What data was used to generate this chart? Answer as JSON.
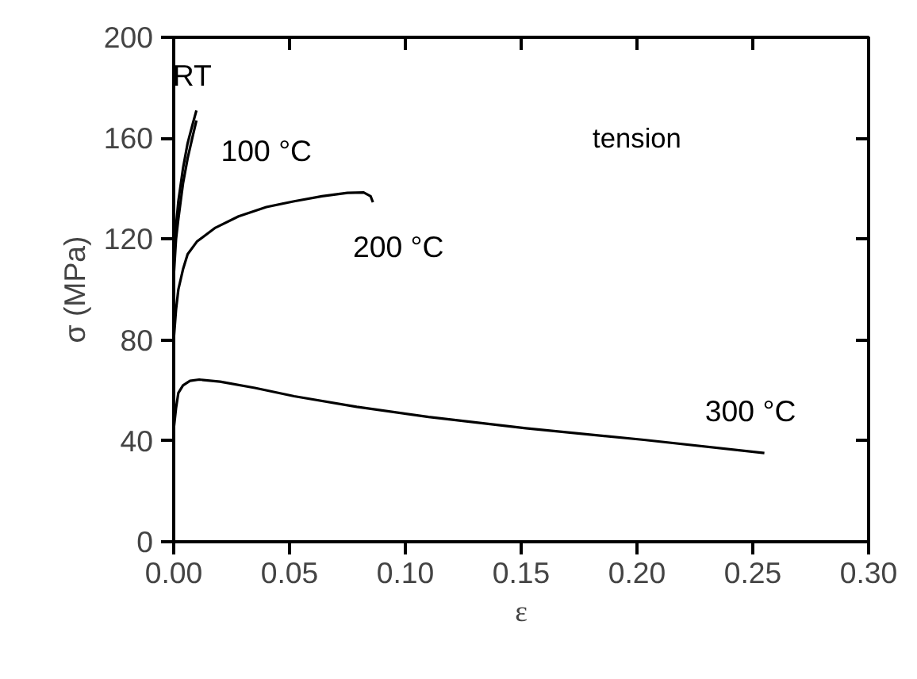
{
  "chart_data": {
    "type": "line",
    "xlabel": "ε",
    "ylabel": "σ (MPa)",
    "annotations": [
      "tension",
      "RT",
      "100 °C",
      "200 °C",
      "300 °C"
    ],
    "xlim": [
      0,
      0.3
    ],
    "ylim": [
      0,
      200
    ],
    "xticks": [
      {
        "value": 0,
        "label": "0.00"
      },
      {
        "value": 0.05,
        "label": "0.05"
      },
      {
        "value": 0.1,
        "label": "0.10"
      },
      {
        "value": 0.15,
        "label": "0.15"
      },
      {
        "value": 0.2,
        "label": "0.20"
      },
      {
        "value": 0.25,
        "label": "0.25"
      },
      {
        "value": 0.3,
        "label": "0.30"
      }
    ],
    "yticks": [
      0,
      40,
      80,
      120,
      160,
      200
    ],
    "grid": false,
    "marker": "none",
    "line_style": "solid",
    "series": [
      {
        "color": "#000000",
        "x": [
          0,
          0.001,
          0.002,
          0.004,
          0.006,
          0.008,
          0.0098
        ],
        "values": [
          110,
          125,
          135,
          148,
          158,
          165,
          171
        ]
      },
      {
        "color": "#000000",
        "x": [
          0,
          0.001,
          0.002,
          0.004,
          0.006,
          0.008,
          0.0098
        ],
        "values": [
          105,
          120,
          128,
          142,
          152,
          160,
          167
        ]
      },
      {
        "color": "#000000",
        "x": [
          0,
          0.001,
          0.002,
          0.004,
          0.006,
          0.01,
          0.018,
          0.028,
          0.04,
          0.052,
          0.064,
          0.075,
          0.082,
          0.085,
          0.086
        ],
        "values": [
          80,
          92,
          100,
          108,
          114,
          119,
          124.5,
          129,
          132.7,
          135,
          137,
          138.3,
          138.5,
          137,
          134.6
        ]
      },
      {
        "color": "#000000",
        "x": [
          0,
          0.001,
          0.002,
          0.004,
          0.007,
          0.011,
          0.02,
          0.035,
          0.052,
          0.079,
          0.11,
          0.152,
          0.203,
          0.255
        ],
        "values": [
          44.6,
          53,
          59,
          62,
          63.8,
          64.3,
          63.5,
          61,
          57.7,
          53.5,
          49.5,
          45,
          40.4,
          35.2
        ]
      }
    ]
  }
}
